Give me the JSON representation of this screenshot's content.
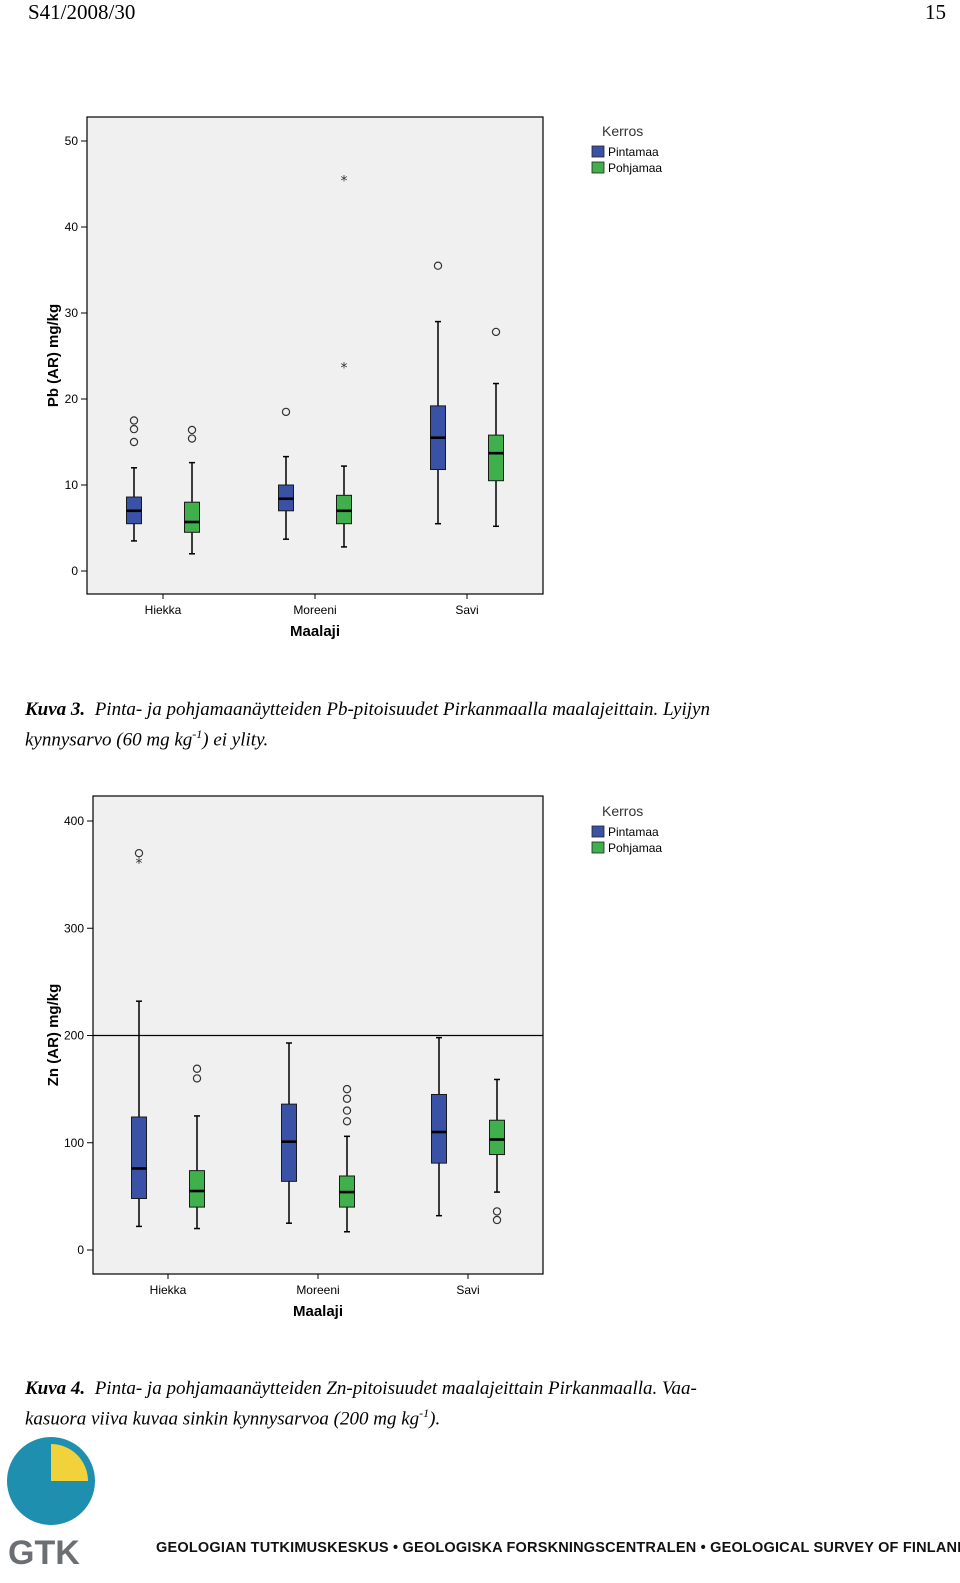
{
  "header": {
    "doc_id": "S41/2008/30",
    "page_number": "15"
  },
  "chart_data": [
    {
      "type": "boxplot",
      "xlabel": "Maalaji",
      "ylabel": "Pb (AR) mg/kg",
      "ylim": [
        0,
        50
      ],
      "yticks": [
        0,
        10,
        20,
        30,
        40,
        50
      ],
      "categories": [
        "Hiekka",
        "Moreeni",
        "Savi"
      ],
      "legend": {
        "title": "Kerros",
        "position": "right"
      },
      "threshold": null,
      "series": [
        {
          "name": "Pintamaa",
          "color": "#3a52a6",
          "boxes": [
            {
              "min": 3.5,
              "q1": 5.5,
              "median": 7,
              "q3": 8.6,
              "max": 12,
              "outliers": [
                15,
                16.5,
                17.5
              ],
              "extremes": []
            },
            {
              "min": 3.7,
              "q1": 7,
              "median": 8.4,
              "q3": 10,
              "max": 13.3,
              "outliers": [
                18.5
              ],
              "extremes": []
            },
            {
              "min": 5.5,
              "q1": 11.8,
              "median": 15.5,
              "q3": 19.2,
              "max": 29,
              "outliers": [
                35.5
              ],
              "extremes": []
            }
          ]
        },
        {
          "name": "Pohjamaa",
          "color": "#3fb04c",
          "boxes": [
            {
              "min": 2,
              "q1": 4.5,
              "median": 5.7,
              "q3": 8,
              "max": 12.6,
              "outliers": [
                15.4,
                16.4
              ],
              "extremes": []
            },
            {
              "min": 2.8,
              "q1": 5.5,
              "median": 7,
              "q3": 8.8,
              "max": 12.2,
              "outliers": [],
              "extremes": [
                23.8,
                45.5
              ]
            },
            {
              "min": 5.2,
              "q1": 10.5,
              "median": 13.7,
              "q3": 15.8,
              "max": 21.8,
              "outliers": [
                27.8
              ],
              "extremes": []
            }
          ]
        }
      ]
    },
    {
      "type": "boxplot",
      "xlabel": "Maalaji",
      "ylabel": "Zn (AR) mg/kg",
      "ylim": [
        0,
        400
      ],
      "yticks": [
        0,
        100,
        200,
        300,
        400
      ],
      "categories": [
        "Hiekka",
        "Moreeni",
        "Savi"
      ],
      "legend": {
        "title": "Kerros",
        "position": "right"
      },
      "threshold": 200,
      "series": [
        {
          "name": "Pintamaa",
          "color": "#3a52a6",
          "boxes": [
            {
              "min": 22,
              "q1": 48,
              "median": 76,
              "q3": 124,
              "max": 232,
              "outliers": [
                370
              ],
              "extremes": [
                362
              ]
            },
            {
              "min": 25,
              "q1": 64,
              "median": 101,
              "q3": 136,
              "max": 193,
              "outliers": [],
              "extremes": []
            },
            {
              "min": 32,
              "q1": 81,
              "median": 110,
              "q3": 145,
              "max": 198,
              "outliers": [],
              "extremes": []
            }
          ]
        },
        {
          "name": "Pohjamaa",
          "color": "#3fb04c",
          "boxes": [
            {
              "min": 20,
              "q1": 40,
              "median": 55,
              "q3": 74,
              "max": 125,
              "outliers": [
                160,
                169
              ],
              "extremes": []
            },
            {
              "min": 17,
              "q1": 40,
              "median": 54,
              "q3": 69,
              "max": 106,
              "outliers": [
                120,
                130,
                141,
                150
              ],
              "extremes": []
            },
            {
              "min": 54,
              "q1": 89,
              "median": 103,
              "q3": 121,
              "max": 159,
              "outliers": [
                28,
                36
              ],
              "extremes": []
            }
          ]
        }
      ]
    }
  ],
  "caption1": {
    "label": "Kuva 3.",
    "line1_text": "Pinta- ja pohjamaanäytteiden Pb-pitoisuudet Pirkanmaalla maalajeittain. Lyijyn",
    "line2_pre": "kynnysarvo (60 mg kg",
    "line2_sup": "-1",
    "line2_post": ") ei ylity."
  },
  "caption2": {
    "label": "Kuva 4.",
    "line1_text": "Pinta- ja pohjamaanäytteiden Zn-pitoisuudet maalajeittain Pirkanmaalla. Vaa-",
    "line2_pre": "kasuora viiva kuvaa sinkin kynnysarvoa (200 mg kg",
    "line2_sup": "-1",
    "line2_post": ")."
  },
  "footer": {
    "logo_text": "GTK",
    "text": "GEOLOGIAN TUTKIMUSKESKUS • GEOLOGISKA FORSKNINGSCENTRALEN • GEOLOGICAL SURVEY OF FINLAND",
    "colors": {
      "globe_teal": "#1f8fb0",
      "globe_yellow": "#f2d23a",
      "logo_gray": "#6b6e72"
    }
  }
}
